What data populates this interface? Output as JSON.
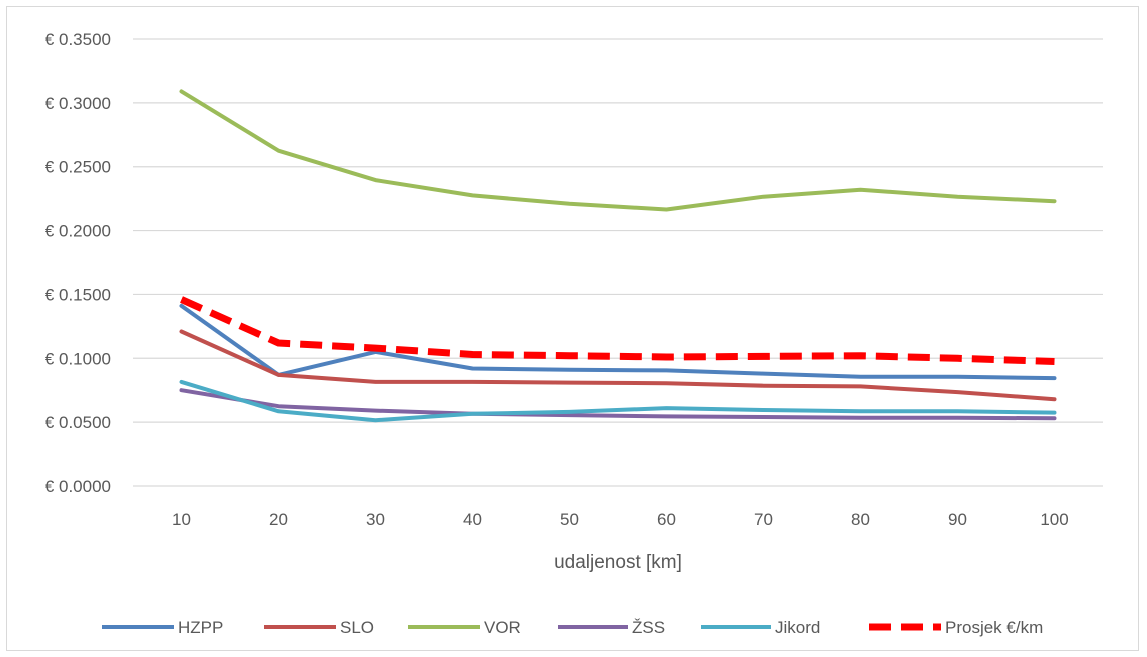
{
  "chart_data": {
    "type": "line",
    "title": "",
    "xlabel": "udaljenost [km]",
    "ylabel": "",
    "x": [
      10,
      20,
      30,
      40,
      50,
      60,
      70,
      80,
      90,
      100
    ],
    "ylim": [
      0,
      0.35
    ],
    "y_ticks": [
      0,
      0.05,
      0.1,
      0.15,
      0.2,
      0.25,
      0.3,
      0.35
    ],
    "y_tick_labels": [
      "€ 0.0000",
      "€ 0.0500",
      "€ 0.1000",
      "€ 0.1500",
      "€ 0.2000",
      "€ 0.2500",
      "€ 0.3000",
      "€ 0.3500"
    ],
    "grid": true,
    "legend_position": "bottom",
    "series": [
      {
        "name": "HZPP",
        "color": "#4f81bd",
        "dashed": false,
        "values": [
          0.141,
          0.087,
          0.105,
          0.092,
          0.091,
          0.0905,
          0.088,
          0.0855,
          0.0855,
          0.0845
        ]
      },
      {
        "name": "SLO",
        "color": "#c0504d",
        "dashed": false,
        "values": [
          0.121,
          0.087,
          0.0815,
          0.0815,
          0.081,
          0.0805,
          0.0785,
          0.078,
          0.0735,
          0.068
        ]
      },
      {
        "name": "VOR",
        "color": "#9bbb59",
        "dashed": false,
        "values": [
          0.309,
          0.2625,
          0.2395,
          0.2275,
          0.221,
          0.2165,
          0.2265,
          0.232,
          0.2265,
          0.223
        ]
      },
      {
        "name": "ŽSS",
        "color": "#8064a2",
        "dashed": false,
        "values": [
          0.075,
          0.0625,
          0.059,
          0.0565,
          0.0555,
          0.0545,
          0.054,
          0.0535,
          0.0535,
          0.053
        ]
      },
      {
        "name": "Jikord",
        "color": "#4bacc6",
        "dashed": false,
        "values": [
          0.0815,
          0.0585,
          0.0515,
          0.0565,
          0.058,
          0.061,
          0.0595,
          0.0585,
          0.0585,
          0.0575
        ]
      },
      {
        "name": "Prosjek €/km",
        "color": "#ff0000",
        "dashed": true,
        "values": [
          0.146,
          0.112,
          0.108,
          0.103,
          0.102,
          0.101,
          0.1015,
          0.102,
          0.1,
          0.0975
        ]
      }
    ]
  }
}
